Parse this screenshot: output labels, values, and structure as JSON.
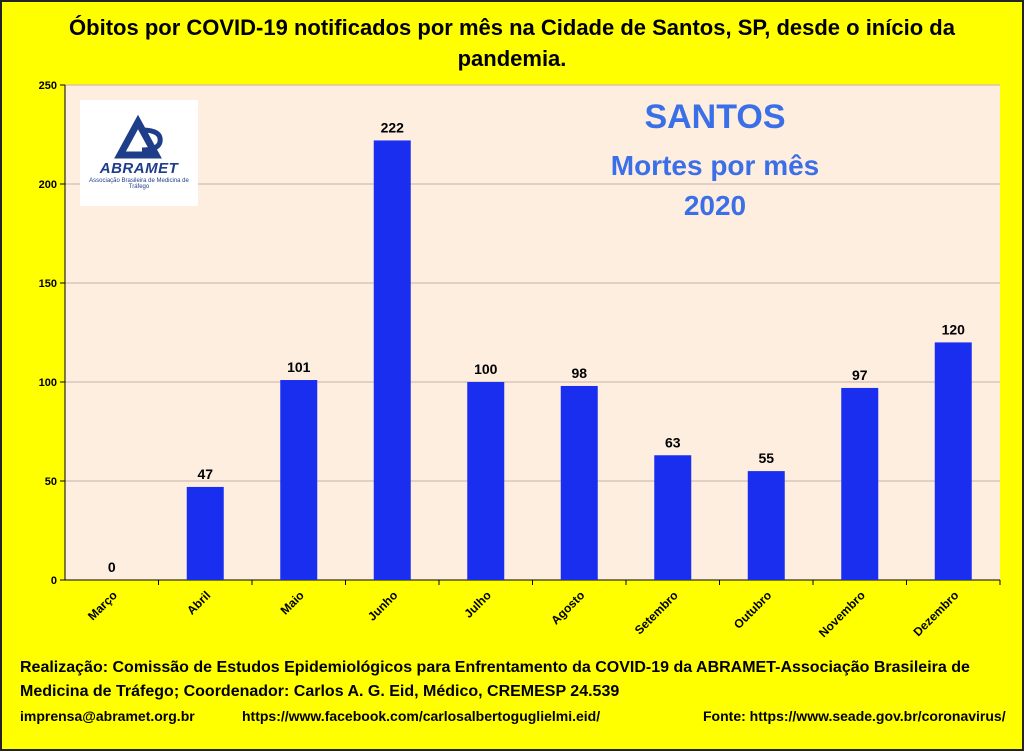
{
  "title": "Óbitos por COVID-19 notificados por mês na Cidade de Santos, SP, desde o início da pandemia.",
  "overlay": {
    "line1": "SANTOS",
    "line2": "Mortes por mês",
    "line3": "2020"
  },
  "logo": {
    "name": "ABRAMET",
    "subtitle": "Associação Brasileira de Medicina de Tráfego"
  },
  "footer": {
    "line1": "Realização: Comissão de Estudos Epidemiológicos para Enfrentamento da COVID-19 da ABRAMET-Associação Brasileira de",
    "line2": "Medicina de Tráfego; Coordenador: Carlos A. G. Eid, Médico, CREMESP 24.539",
    "email": "imprensa@abramet.org.br",
    "facebook": "https://www.facebook.com/carlosalbertoguglielmi.eid/",
    "source": "Fonte: https://www.seade.gov.br/coronavirus/"
  },
  "colors": {
    "background": "#ffff00",
    "plot_area": "#fdeee0",
    "bar": "#1a2ef0",
    "overlay_text": "#3b6fe8"
  },
  "chart_data": {
    "type": "bar",
    "categories": [
      "Março",
      "Abril",
      "Maio",
      "Junho",
      "Julho",
      "Agosto",
      "Setembro",
      "Outubro",
      "Novembro",
      "Dezembro"
    ],
    "values": [
      0,
      47,
      101,
      222,
      100,
      98,
      63,
      55,
      97,
      120
    ],
    "ylim": [
      0,
      250
    ],
    "yticks": [
      0,
      50,
      100,
      150,
      200,
      250
    ],
    "grid": true,
    "data_labels": true
  }
}
